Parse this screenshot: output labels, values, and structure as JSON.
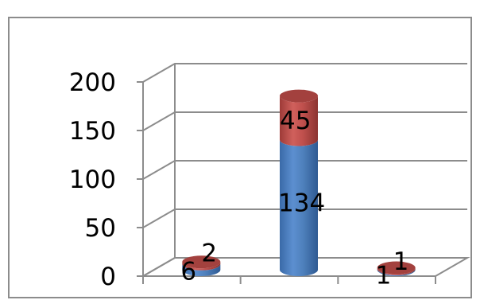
{
  "chart_data": {
    "type": "bar",
    "stacked": true,
    "three_d": true,
    "categories": [
      "",
      "",
      ""
    ],
    "series": [
      {
        "values": [
          6,
          134,
          1
        ],
        "color": "#4f81bd"
      },
      {
        "values": [
          2,
          45,
          1
        ],
        "color": "#c0504d"
      }
    ],
    "ylim": [
      0,
      200
    ],
    "yticks": [
      "0",
      "50",
      "100",
      "150",
      "200"
    ],
    "grid": true,
    "legend": "none",
    "title": "",
    "xlabel": "",
    "ylabel": ""
  }
}
